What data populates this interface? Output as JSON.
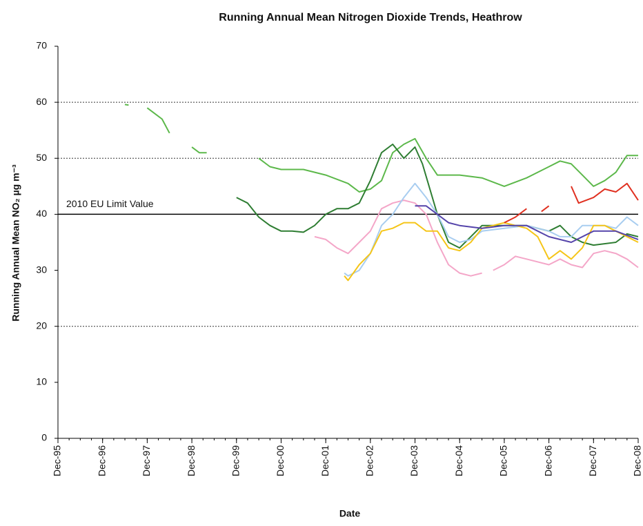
{
  "chart_data": {
    "type": "line",
    "title": "Running Annual Mean Nitrogen Dioxide Trends, Heathrow",
    "x_label": "Date",
    "y_label": "Running Annual Mean NO₂ µg m⁻³",
    "xlim": [
      "Dec-95",
      "Dec-08"
    ],
    "xticks": [
      "Dec-95",
      "Dec-96",
      "Dec-97",
      "Dec-98",
      "Dec-99",
      "Dec-00",
      "Dec-01",
      "Dec-02",
      "Dec-03",
      "Dec-04",
      "Dec-05",
      "Dec-06",
      "Dec-07",
      "Dec-08"
    ],
    "ylim": [
      0,
      70
    ],
    "yticks": [
      0,
      10,
      20,
      30,
      40,
      50,
      60,
      70
    ],
    "grid_lines": [
      20,
      50,
      60
    ],
    "limit": {
      "label": "2010 EU Limit Value",
      "value": 40
    },
    "series": [
      {
        "color": "#5cb84a",
        "x": [
          "Jun-97",
          "Jul-97",
          null,
          "Dec-97",
          "Feb-98",
          "Apr-98",
          "Jun-98",
          null,
          "Dec-98",
          "Feb-99",
          "Apr-99",
          null,
          "Jun-00",
          "Sep-00",
          "Dec-00",
          "Jun-01",
          "Dec-01",
          "Jun-02",
          "Sep-02",
          "Dec-02",
          "Mar-03",
          "Jun-03",
          "Sep-03",
          "Dec-03",
          "Mar-04",
          "Jun-04",
          "Dec-04",
          "Jun-05",
          "Dec-05",
          "Jun-06",
          "Dec-06",
          "Mar-07",
          "Jun-07",
          "Sep-07",
          "Dec-07",
          "Mar-08",
          "Jun-08",
          "Sep-08",
          "Dec-08"
        ],
        "values": [
          59.6,
          59.5,
          null,
          59,
          58,
          57,
          54.5,
          null,
          52,
          51,
          51,
          null,
          50,
          48.5,
          48,
          48,
          47,
          45.5,
          44,
          44.5,
          46,
          51,
          52.5,
          53.5,
          50,
          47,
          47,
          46.5,
          45,
          46.5,
          48.5,
          49.5,
          49,
          47,
          45,
          46,
          47.5,
          50.5,
          50.5
        ]
      },
      {
        "color": "#2e7d32",
        "x": [
          "Dec-99",
          "Mar-00",
          "Jun-00",
          "Sep-00",
          "Dec-00",
          "Mar-01",
          "Jun-01",
          "Sep-01",
          "Dec-01",
          "Mar-02",
          "Jun-02",
          "Sep-02",
          "Dec-02",
          "Mar-03",
          "Jun-03",
          "Sep-03",
          "Dec-03",
          "Feb-04",
          "Jun-04",
          "Sep-04",
          "Dec-04",
          "Mar-05",
          "Jun-05",
          "Dec-05",
          "Jun-06",
          "Dec-06",
          "Mar-07",
          "Jun-07",
          "Sep-07",
          "Dec-07",
          "Jun-08",
          "Sep-08",
          "Dec-08"
        ],
        "values": [
          43,
          42,
          39.5,
          38,
          37,
          37,
          36.8,
          38,
          40,
          41,
          41,
          42,
          46,
          51,
          52.5,
          50,
          52,
          49,
          40,
          35,
          34,
          36,
          38,
          38,
          38,
          37,
          38,
          36,
          35,
          34.5,
          35,
          36.5,
          36
        ]
      },
      {
        "color": "#f4a6c8",
        "x": [
          "Sep-01",
          "Dec-01",
          "Mar-02",
          "Jun-02",
          "Sep-02",
          "Dec-02",
          "Mar-03",
          "Jun-03",
          "Sep-03",
          "Dec-03",
          "Mar-04",
          "Jun-04",
          "Sep-04",
          "Dec-04",
          "Mar-05",
          "Jun-05",
          null,
          "Sep-05",
          "Dec-05",
          "Mar-06",
          "Jun-06",
          "Dec-06",
          "Mar-07",
          "Jun-07",
          "Sep-07",
          "Dec-07",
          "Mar-08",
          "Jun-08",
          "Sep-08",
          "Dec-08"
        ],
        "values": [
          36,
          35.5,
          34,
          33,
          35,
          37,
          41,
          42,
          42.5,
          42,
          40,
          35,
          31,
          29.5,
          29,
          29.5,
          null,
          30,
          31,
          32.5,
          32,
          31,
          32,
          31,
          30.5,
          33,
          33.5,
          33,
          32,
          30.5
        ]
      },
      {
        "color": "#a8cdf0",
        "x": [
          "May-02",
          "Jun-02",
          "Sep-02",
          "Dec-02",
          "Mar-03",
          "Jun-03",
          "Sep-03",
          "Dec-03",
          "Mar-04",
          "Jun-04",
          "Sep-04",
          "Dec-04",
          "Mar-05",
          "Jun-05",
          "Dec-05",
          "Jun-06",
          "Dec-06",
          "Mar-07",
          "Jun-07",
          "Sep-07",
          "Dec-07",
          "Mar-08",
          "Jun-08",
          "Sep-08",
          "Dec-08"
        ],
        "values": [
          29.5,
          29,
          30,
          33,
          38,
          40,
          43,
          45.5,
          43,
          40,
          36,
          35,
          35.5,
          37,
          37.5,
          38,
          37,
          36,
          36,
          38,
          38,
          38,
          37.5,
          39.5,
          38
        ]
      },
      {
        "color": "#f5c518",
        "x": [
          "May-02",
          "Jun-02",
          "Sep-02",
          "Dec-02",
          "Mar-03",
          "Jun-03",
          "Sep-03",
          "Dec-03",
          "Mar-04",
          "Jun-04",
          "Sep-04",
          "Dec-04",
          "Mar-05",
          "Jun-05",
          "Dec-05",
          "Jun-06",
          "Sep-06",
          "Dec-06",
          "Mar-07",
          "Jun-07",
          "Sep-07",
          "Dec-07",
          "Mar-08",
          "Jun-08",
          "Sep-08",
          "Dec-08"
        ],
        "values": [
          29,
          28.2,
          31,
          33,
          37,
          37.5,
          38.5,
          38.5,
          37,
          37,
          34,
          33.5,
          35,
          37.5,
          38.5,
          37.5,
          36,
          32,
          33.5,
          32,
          34,
          38,
          38,
          37,
          36,
          35
        ]
      },
      {
        "color": "#5544aa",
        "x": [
          "Dec-03",
          "Mar-04",
          "Jun-04",
          "Sep-04",
          "Dec-04",
          "Jun-05",
          "Dec-05",
          "Jun-06",
          "Dec-06",
          "Jun-07",
          "Dec-07",
          "Jun-08",
          "Dec-08"
        ],
        "values": [
          41.5,
          41.5,
          40,
          38.5,
          38,
          37.5,
          38,
          38,
          36,
          35,
          37,
          37,
          35.5
        ]
      },
      {
        "color": "#e03020",
        "x": [
          "Dec-05",
          "Mar-06",
          "Jun-06",
          null,
          "Oct-06",
          "Dec-06",
          null,
          "Jun-07",
          "Aug-07",
          "Dec-07",
          "Mar-08",
          "Jun-08",
          "Sep-08",
          "Dec-08"
        ],
        "values": [
          38.5,
          39.5,
          41,
          null,
          40.5,
          41.5,
          null,
          45,
          42,
          43,
          44.5,
          44,
          45.5,
          42.5
        ]
      }
    ]
  }
}
